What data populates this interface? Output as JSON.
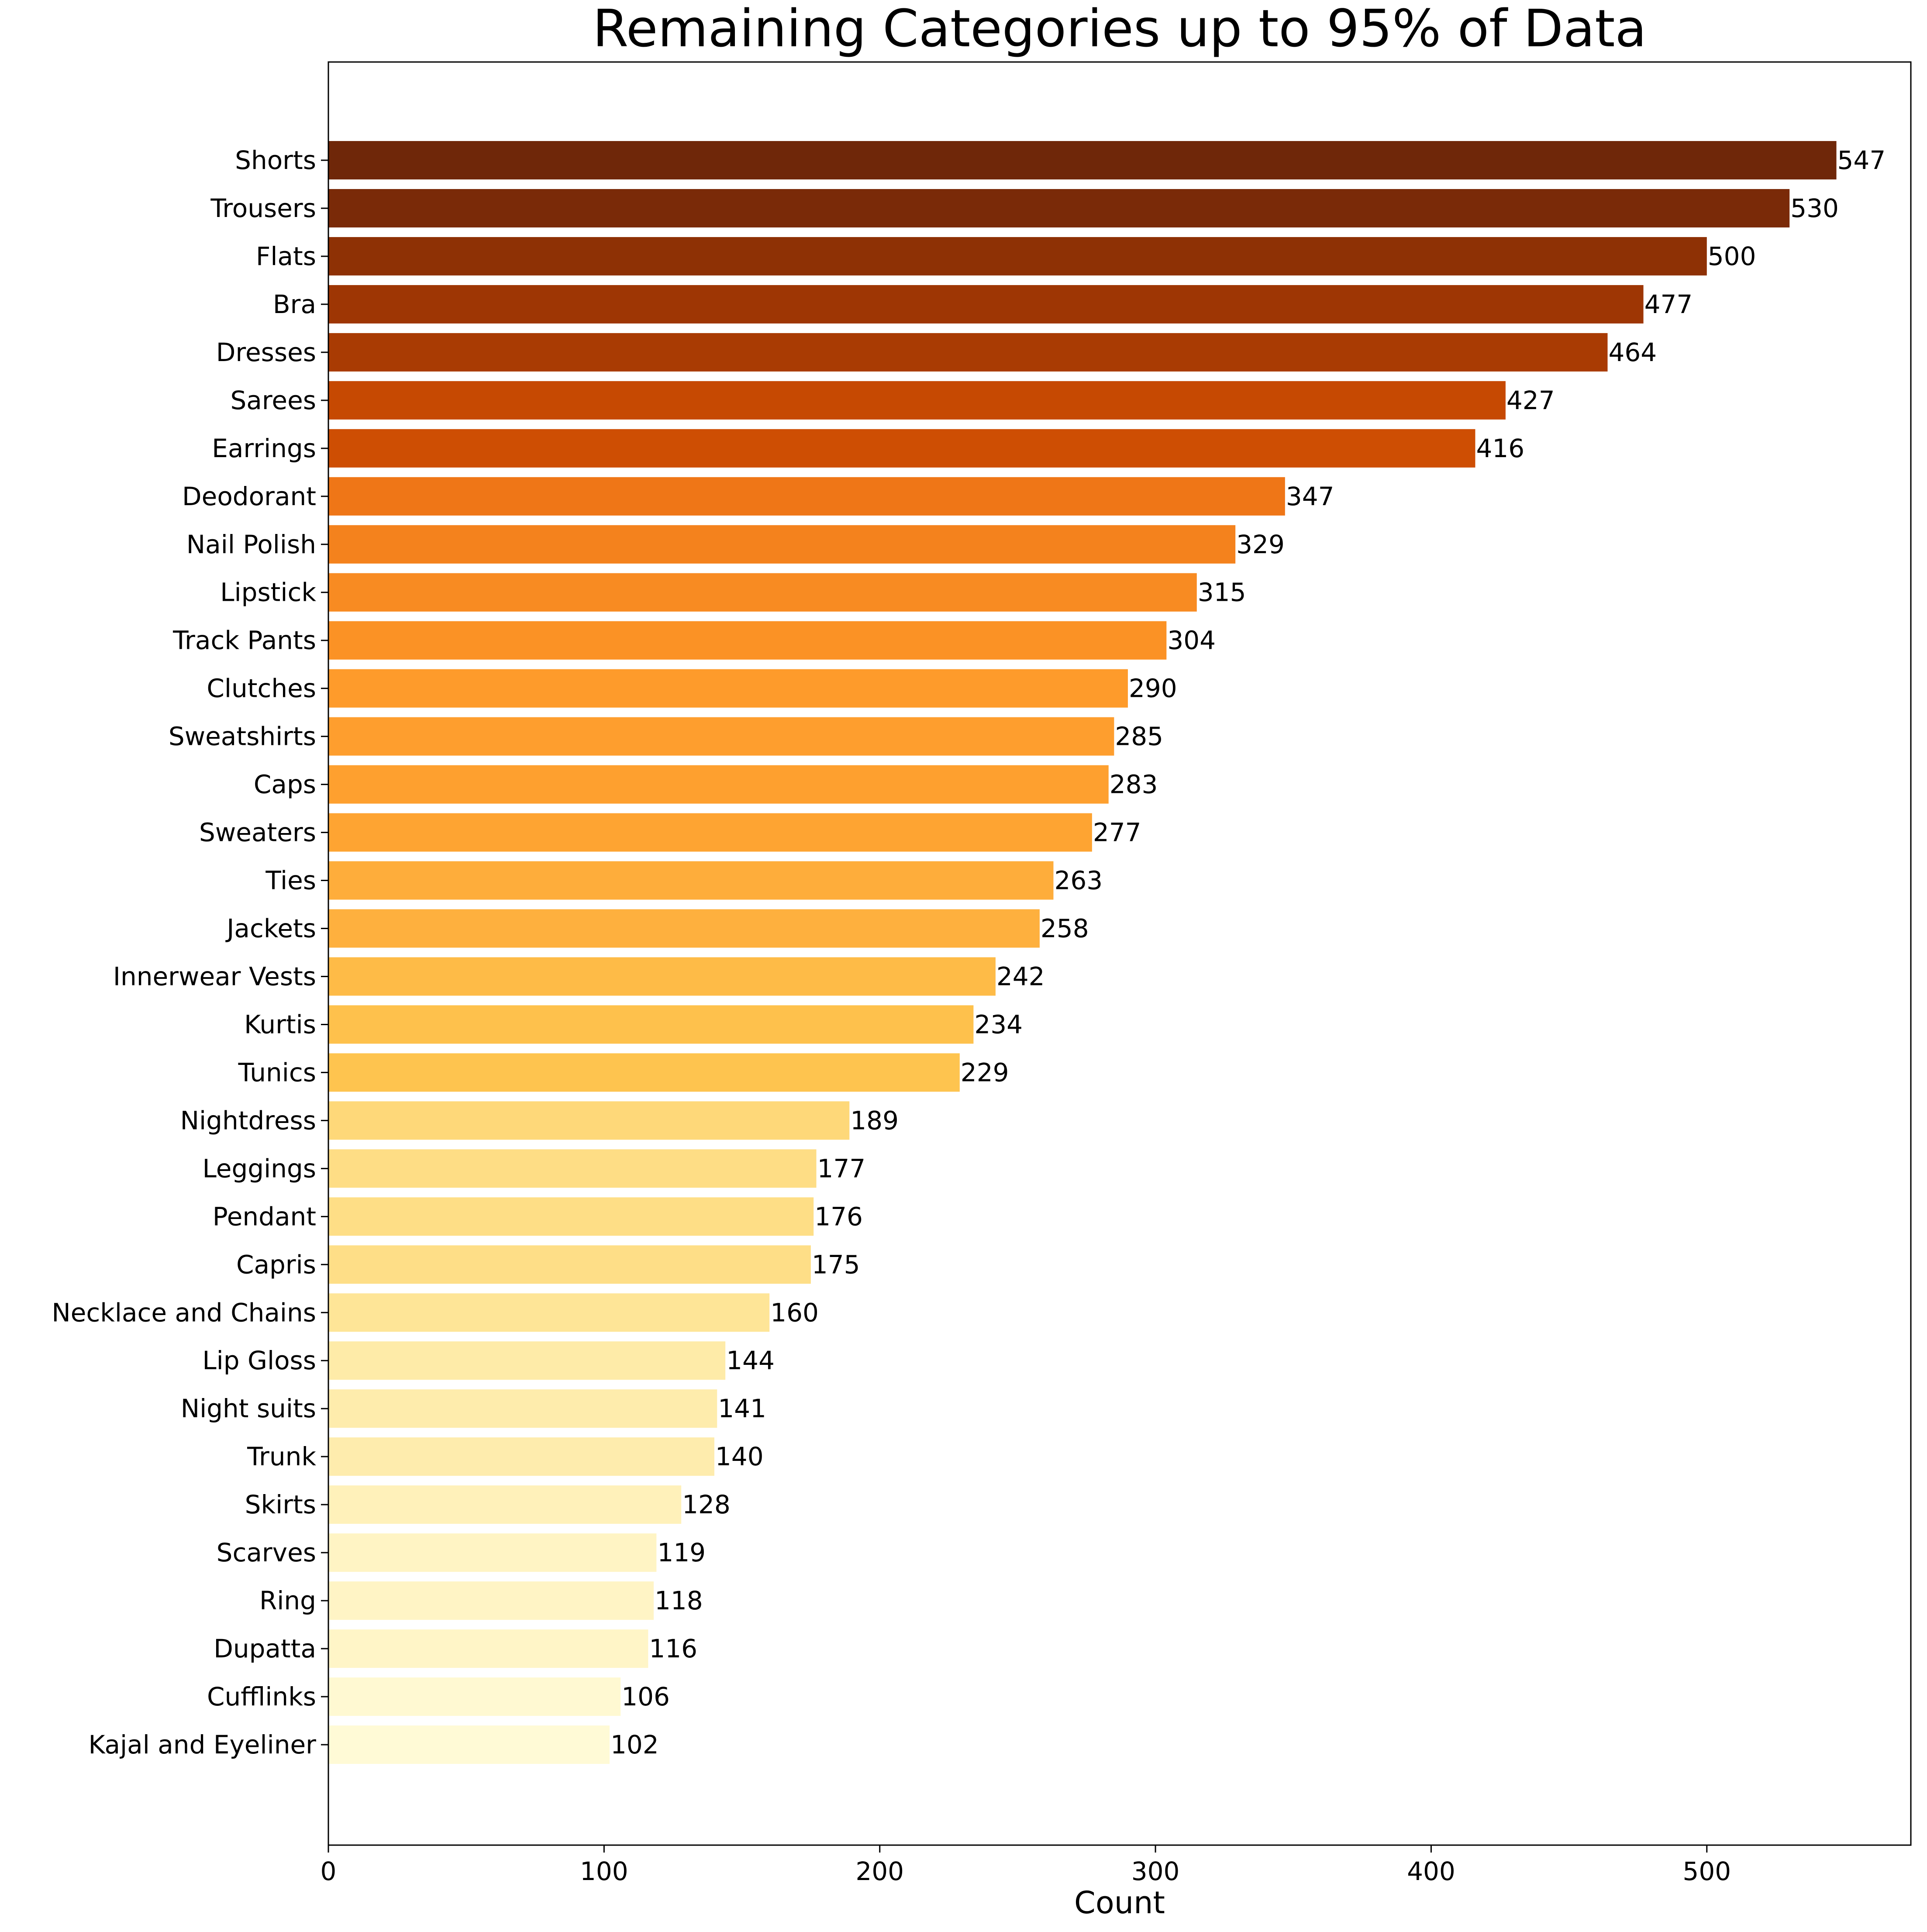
{
  "chart_data": {
    "type": "bar",
    "orientation": "horizontal",
    "title": "Remaining Categories up to 95% of Data",
    "xlabel": "Count",
    "ylabel": "",
    "xlim": [
      0,
      574
    ],
    "x_ticks": [
      0,
      100,
      200,
      300,
      400,
      500
    ],
    "grid": false,
    "legend": "none",
    "color_scale": "light yellow (lowest count) to dark brown (highest count)",
    "colors": {
      "high": "#6f2709",
      "mid": "#f7821a",
      "low": "#fffad6"
    },
    "categories": [
      "Shorts",
      "Trousers",
      "Flats",
      "Bra",
      "Dresses",
      "Sarees",
      "Earrings",
      "Deodorant",
      "Nail Polish",
      "Lipstick",
      "Track Pants",
      "Clutches",
      "Sweatshirts",
      "Caps",
      "Sweaters",
      "Ties",
      "Jackets",
      "Innerwear Vests",
      "Kurtis",
      "Tunics",
      "Nightdress",
      "Leggings",
      "Pendant",
      "Capris",
      "Necklace and Chains",
      "Lip Gloss",
      "Night suits",
      "Trunk",
      "Skirts",
      "Scarves",
      "Ring",
      "Dupatta",
      "Cufflinks",
      "Kajal and Eyeliner"
    ],
    "values": [
      547,
      530,
      500,
      477,
      464,
      427,
      416,
      347,
      329,
      315,
      304,
      290,
      285,
      283,
      277,
      263,
      258,
      242,
      234,
      229,
      189,
      177,
      176,
      175,
      160,
      144,
      141,
      140,
      128,
      119,
      118,
      116,
      106,
      102
    ]
  }
}
